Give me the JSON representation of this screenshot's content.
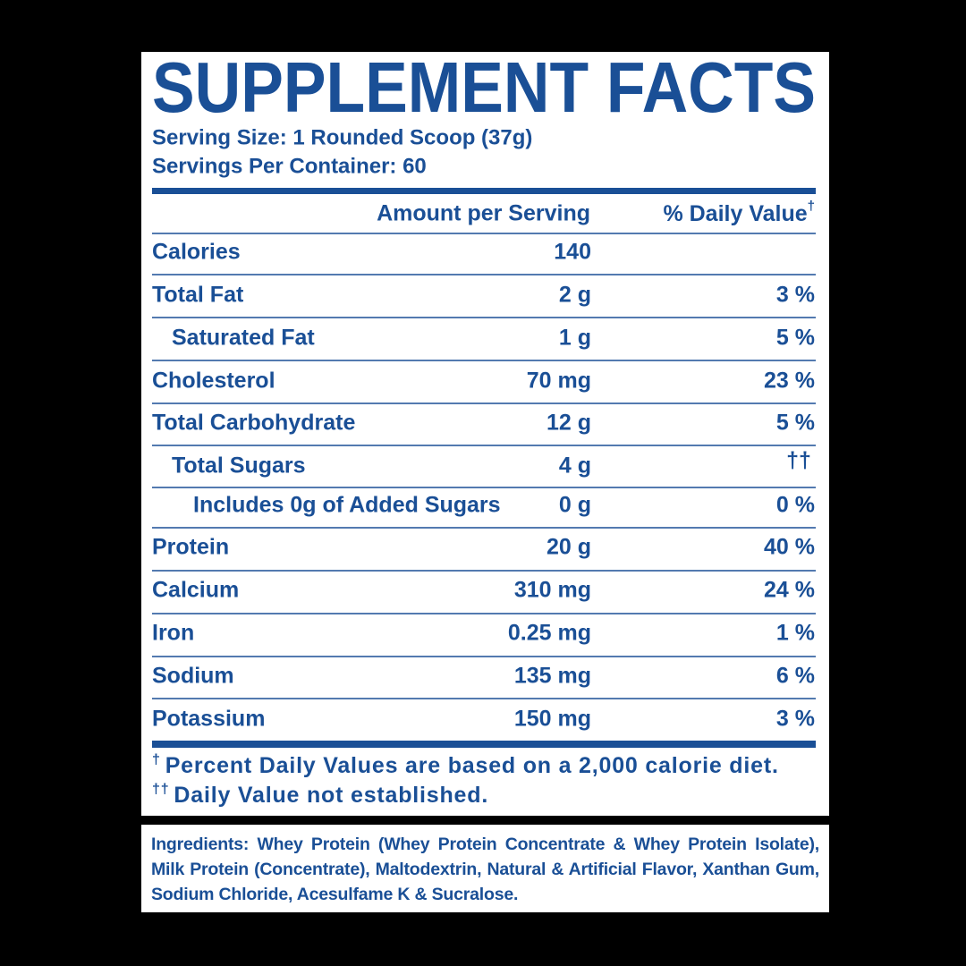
{
  "header": {
    "title": "SUPPLEMENT FACTS",
    "serving_size": "Serving Size: 1 Rounded Scoop (37g)",
    "servings_per_container": "Servings Per Container: 60"
  },
  "table": {
    "columns": [
      {
        "label": "Amount per Serving"
      },
      {
        "label": "% Daily Value",
        "mark": "†"
      }
    ],
    "rows": [
      {
        "name": "Calories",
        "amount": "140"
      },
      {
        "name": "Total Fat",
        "amount": "2 g",
        "dv": "3 %"
      },
      {
        "name": "Saturated Fat",
        "amount": "1 g",
        "dv": "5 %"
      },
      {
        "name": "Cholesterol",
        "amount": "70 mg",
        "dv": "23 %"
      },
      {
        "name": "Total Carbohydrate",
        "amount": "12 g",
        "dv": "5 %"
      },
      {
        "name": "Total Sugars",
        "amount": "4 g",
        "dv": "††"
      },
      {
        "name": "Includes 0g of Added Sugars",
        "amount": "0 g",
        "dv": "0 %"
      },
      {
        "name": "Protein",
        "amount": "20 g",
        "dv": "40 %"
      },
      {
        "name": "Calcium",
        "amount": "310 mg",
        "dv": "24 %"
      },
      {
        "name": "Iron",
        "amount": "0.25 mg",
        "dv": "1 %"
      },
      {
        "name": "Sodium",
        "amount": "135 mg",
        "dv": "6 %"
      },
      {
        "name": "Potassium",
        "amount": "150 mg",
        "dv": "3 %"
      }
    ]
  },
  "footnotes": [
    {
      "symbol": "†",
      "text": "Percent Daily Values are based on a 2,000 calorie diet."
    },
    {
      "symbol": "††",
      "text": "Daily Value not established."
    }
  ],
  "ingredients": {
    "label": "Ingredients:",
    "text": "Whey Protein (Whey Protein Concentrate & Whey Protein Isolate), Milk Protein (Concentrate), Maltodextrin, Natural & Artificial Flavor, Xanthan Gum, Sodium Chloride, Acesulfame K & Sucralose."
  }
}
